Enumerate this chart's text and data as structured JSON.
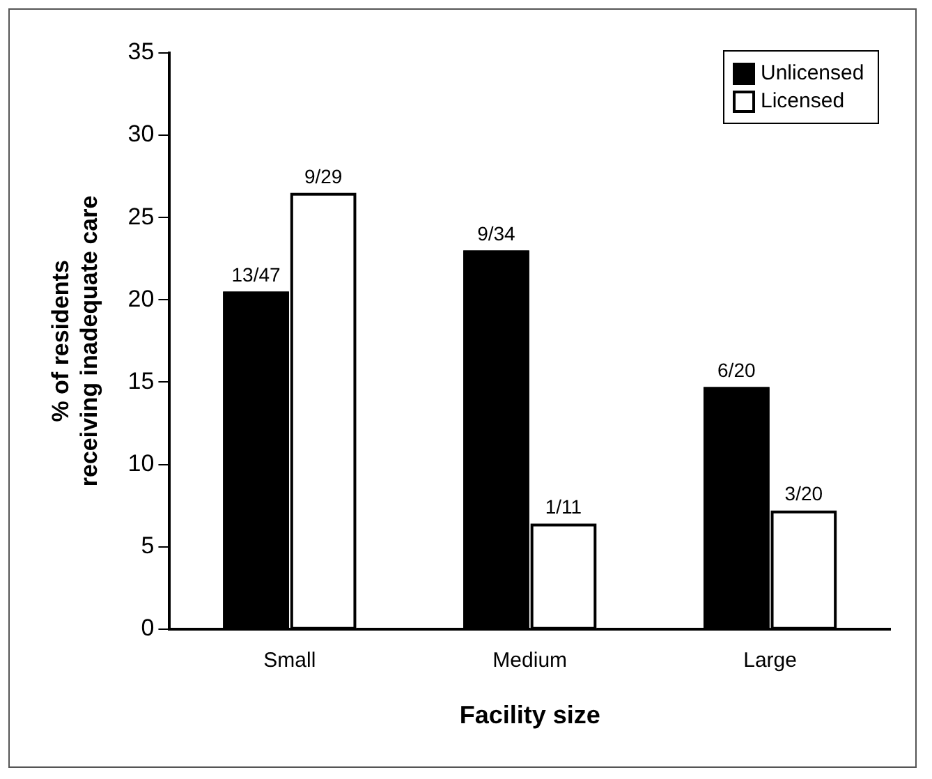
{
  "chart_data": {
    "type": "bar",
    "xlabel": "Facility size",
    "ylabel": "% of residents\nreceiving inadequate care",
    "categories": [
      "Small",
      "Medium",
      "Large"
    ],
    "series": [
      {
        "name": "Unlicensed",
        "color": "#000000",
        "values": [
          20.5,
          23.0,
          14.7
        ],
        "value_labels": [
          "13/47",
          "9/34",
          "6/20"
        ]
      },
      {
        "name": "Licensed",
        "color": "#ffffff",
        "values": [
          26.5,
          6.4,
          7.2
        ],
        "value_labels": [
          "9/29",
          "1/11",
          "3/20"
        ]
      }
    ],
    "ylim": [
      0,
      35
    ],
    "yticks": [
      0,
      5,
      10,
      15,
      20,
      25,
      30,
      35
    ],
    "grid": false,
    "legend": "top right"
  }
}
